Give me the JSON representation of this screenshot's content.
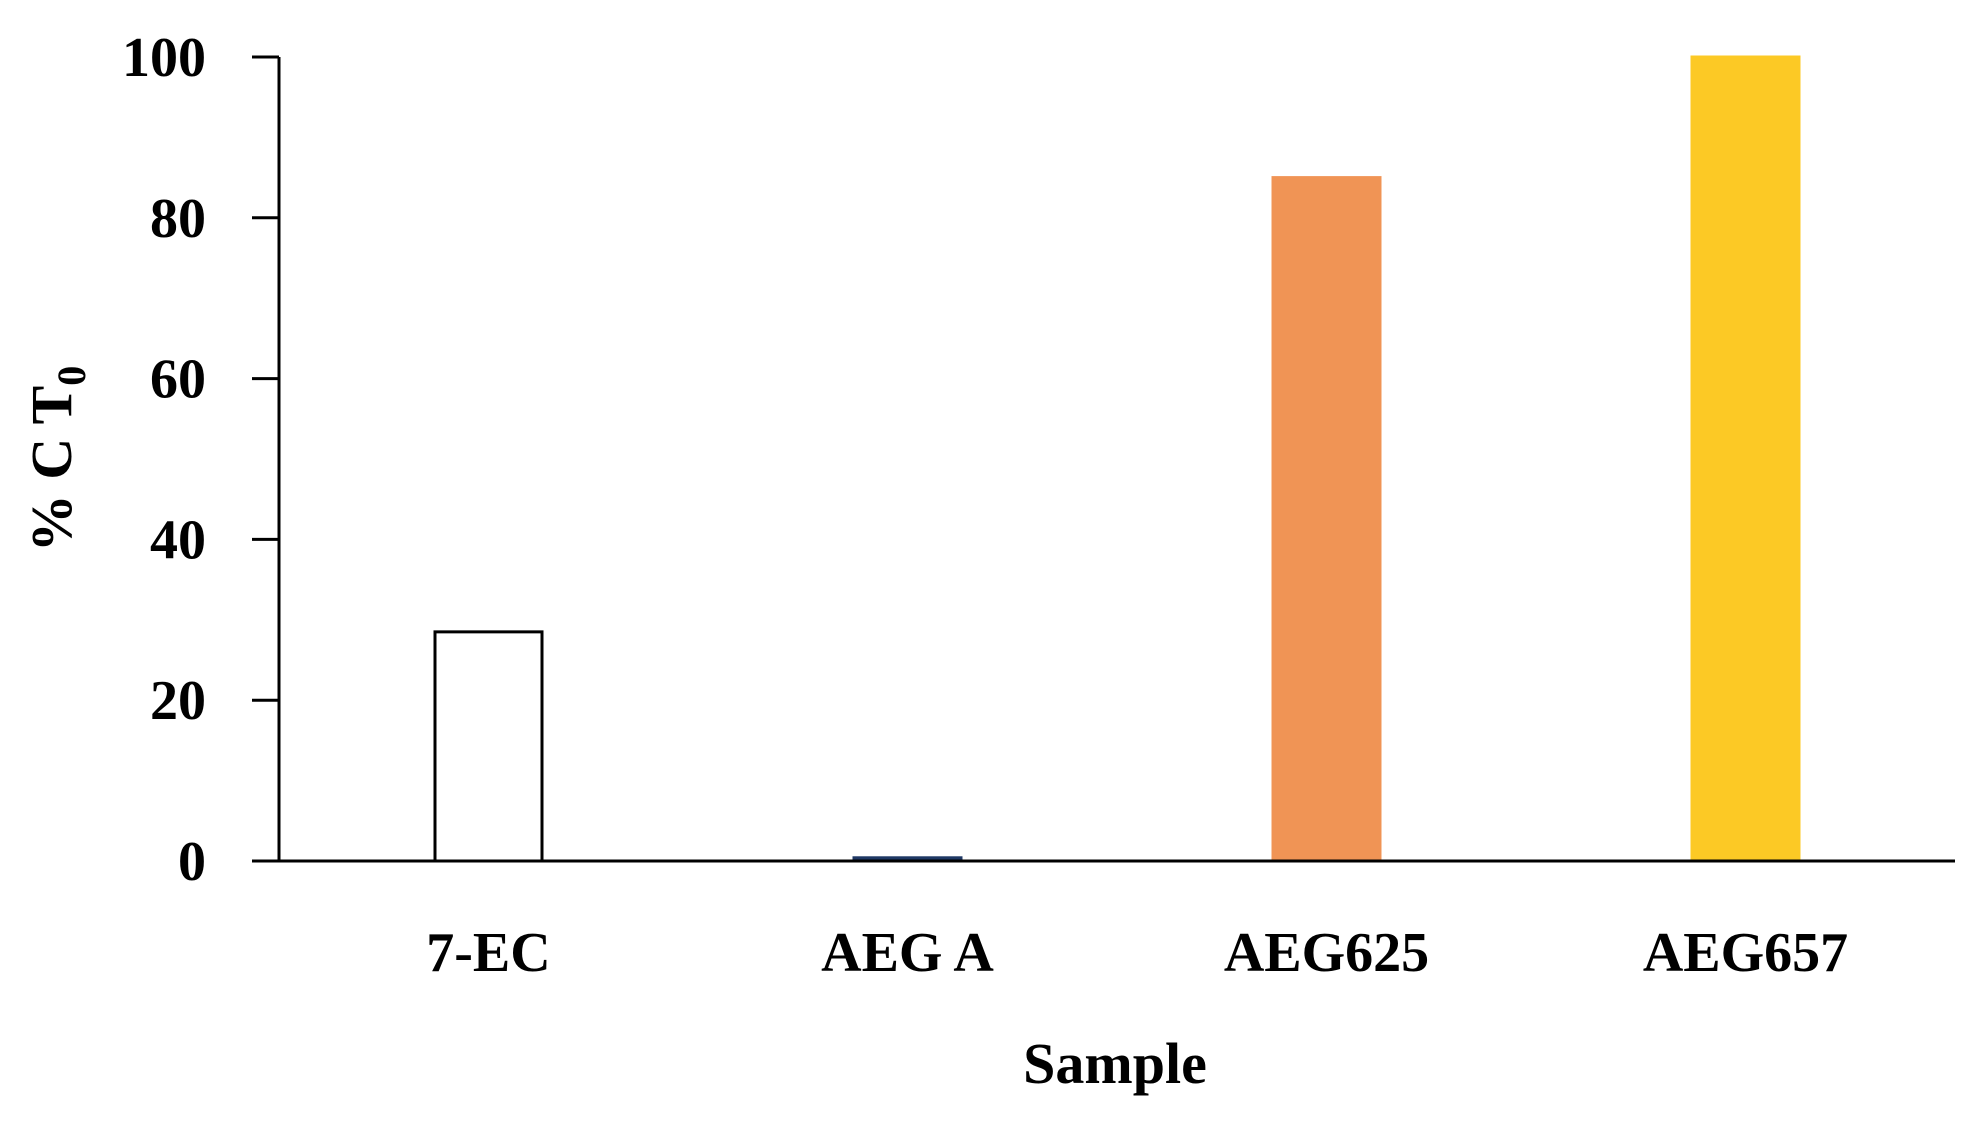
{
  "chart_data": {
    "type": "bar",
    "categories": [
      "7-EC",
      "AEG A",
      "AEG625",
      "AEG657"
    ],
    "values": [
      28.5,
      0.4,
      85,
      100
    ],
    "colors": [
      "#ffffff",
      "#1f3864",
      "#f09455",
      "#fcc925"
    ],
    "outline_colors": [
      "#000000",
      "#1f3864",
      "#f09455",
      "#fcc925"
    ],
    "xlabel": "Sample",
    "ylabel": {
      "main": "% C T",
      "subscript": "0"
    },
    "ylim": [
      0,
      100
    ],
    "yticks": [
      0,
      20,
      40,
      60,
      80,
      100
    ],
    "grid": false,
    "legend": "none"
  }
}
